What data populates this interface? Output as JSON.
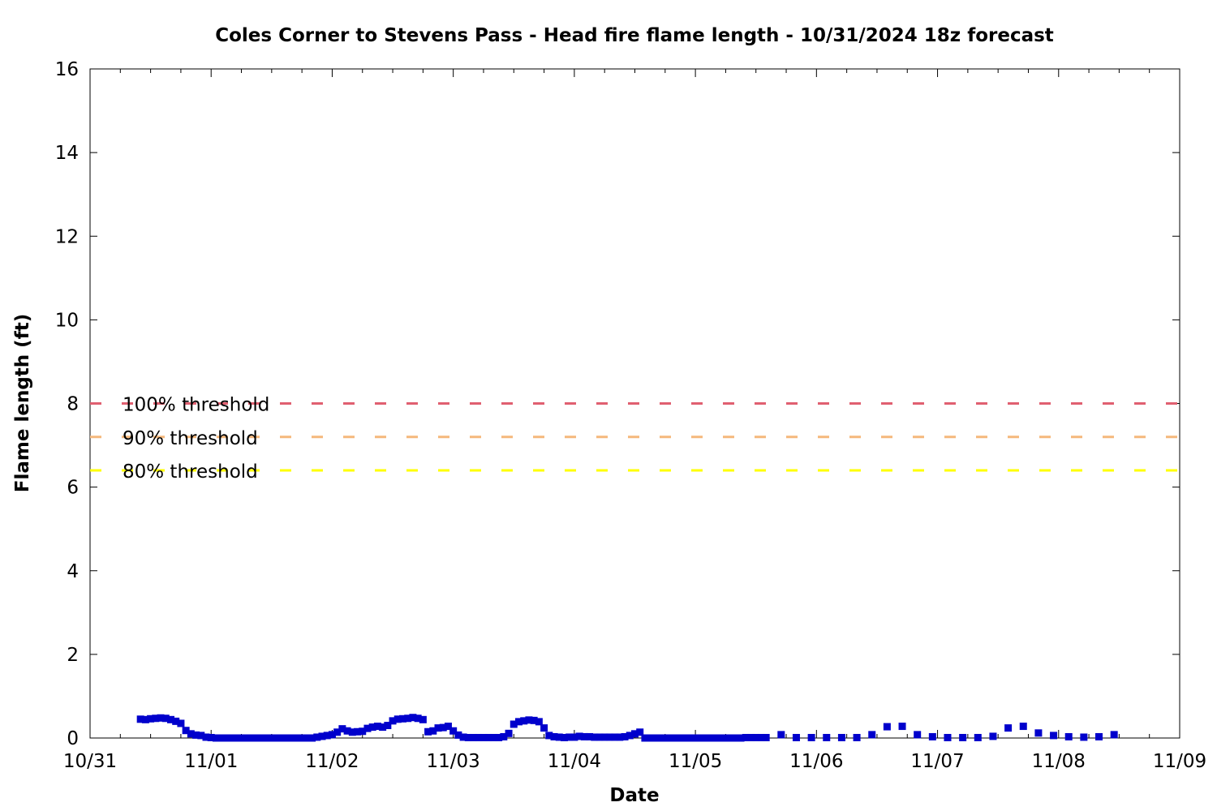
{
  "chart_data": {
    "type": "scatter",
    "title": "Coles Corner to Stevens Pass - Head fire flame length - 10/31/2024 18z forecast",
    "xlabel": "Date",
    "ylabel": "Flame length (ft)",
    "xlim": [
      "2024-10-31 00:00",
      "2024-11-09 00:00"
    ],
    "ylim": [
      0,
      16
    ],
    "x_tick_labels": [
      "10/31",
      "11/01",
      "11/02",
      "11/03",
      "11/04",
      "11/05",
      "11/06",
      "11/07",
      "11/08",
      "11/09"
    ],
    "y_ticks": [
      0,
      2,
      4,
      6,
      8,
      10,
      12,
      14,
      16
    ],
    "grid": false,
    "legend_position": "left",
    "thresholds": [
      {
        "name": "100% threshold",
        "value": 8.0,
        "color": "#e06070"
      },
      {
        "name": "90% threshold",
        "value": 7.2,
        "color": "#f5b87c"
      },
      {
        "name": "80% threshold",
        "value": 6.4,
        "color": "#ffff00"
      }
    ],
    "series": [
      {
        "color": "#0000cc",
        "marker": "square",
        "points": [
          [
            "2024-10-31 10:00",
            0.45
          ],
          [
            "2024-10-31 11:00",
            0.44
          ],
          [
            "2024-10-31 12:00",
            0.46
          ],
          [
            "2024-10-31 13:00",
            0.47
          ],
          [
            "2024-10-31 14:00",
            0.48
          ],
          [
            "2024-10-31 15:00",
            0.47
          ],
          [
            "2024-10-31 16:00",
            0.44
          ],
          [
            "2024-10-31 17:00",
            0.4
          ],
          [
            "2024-10-31 18:00",
            0.35
          ],
          [
            "2024-10-31 19:00",
            0.18
          ],
          [
            "2024-10-31 20:00",
            0.1
          ],
          [
            "2024-10-31 21:00",
            0.07
          ],
          [
            "2024-10-31 22:00",
            0.06
          ],
          [
            "2024-10-31 23:00",
            0.02
          ],
          [
            "2024-11-01 00:00",
            0.01
          ],
          [
            "2024-11-01 01:00",
            0.0
          ],
          [
            "2024-11-01 02:00",
            0.0
          ],
          [
            "2024-11-01 03:00",
            0.0
          ],
          [
            "2024-11-01 04:00",
            0.0
          ],
          [
            "2024-11-01 05:00",
            0.0
          ],
          [
            "2024-11-01 06:00",
            0.0
          ],
          [
            "2024-11-01 07:00",
            0.0
          ],
          [
            "2024-11-01 08:00",
            0.0
          ],
          [
            "2024-11-01 09:00",
            0.0
          ],
          [
            "2024-11-01 10:00",
            0.0
          ],
          [
            "2024-11-01 11:00",
            0.0
          ],
          [
            "2024-11-01 12:00",
            0.0
          ],
          [
            "2024-11-01 13:00",
            0.0
          ],
          [
            "2024-11-01 14:00",
            0.0
          ],
          [
            "2024-11-01 15:00",
            0.0
          ],
          [
            "2024-11-01 16:00",
            0.0
          ],
          [
            "2024-11-01 17:00",
            0.0
          ],
          [
            "2024-11-01 18:00",
            0.0
          ],
          [
            "2024-11-01 19:00",
            0.0
          ],
          [
            "2024-11-01 20:00",
            0.0
          ],
          [
            "2024-11-01 21:00",
            0.02
          ],
          [
            "2024-11-01 22:00",
            0.04
          ],
          [
            "2024-11-01 23:00",
            0.06
          ],
          [
            "2024-11-02 00:00",
            0.08
          ],
          [
            "2024-11-02 01:00",
            0.14
          ],
          [
            "2024-11-02 02:00",
            0.22
          ],
          [
            "2024-11-02 03:00",
            0.17
          ],
          [
            "2024-11-02 04:00",
            0.14
          ],
          [
            "2024-11-02 05:00",
            0.15
          ],
          [
            "2024-11-02 06:00",
            0.16
          ],
          [
            "2024-11-02 07:00",
            0.23
          ],
          [
            "2024-11-02 08:00",
            0.26
          ],
          [
            "2024-11-02 09:00",
            0.28
          ],
          [
            "2024-11-02 10:00",
            0.26
          ],
          [
            "2024-11-02 11:00",
            0.3
          ],
          [
            "2024-11-02 12:00",
            0.41
          ],
          [
            "2024-11-02 13:00",
            0.45
          ],
          [
            "2024-11-02 14:00",
            0.46
          ],
          [
            "2024-11-02 15:00",
            0.47
          ],
          [
            "2024-11-02 16:00",
            0.49
          ],
          [
            "2024-11-02 17:00",
            0.47
          ],
          [
            "2024-11-02 18:00",
            0.44
          ],
          [
            "2024-11-02 19:00",
            0.15
          ],
          [
            "2024-11-02 20:00",
            0.17
          ],
          [
            "2024-11-02 21:00",
            0.24
          ],
          [
            "2024-11-02 22:00",
            0.25
          ],
          [
            "2024-11-02 23:00",
            0.28
          ],
          [
            "2024-11-03 00:00",
            0.17
          ],
          [
            "2024-11-03 01:00",
            0.07
          ],
          [
            "2024-11-03 02:00",
            0.02
          ],
          [
            "2024-11-03 03:00",
            0.01
          ],
          [
            "2024-11-03 04:00",
            0.01
          ],
          [
            "2024-11-03 05:00",
            0.01
          ],
          [
            "2024-11-03 06:00",
            0.01
          ],
          [
            "2024-11-03 07:00",
            0.01
          ],
          [
            "2024-11-03 08:00",
            0.01
          ],
          [
            "2024-11-03 09:00",
            0.01
          ],
          [
            "2024-11-03 10:00",
            0.03
          ],
          [
            "2024-11-03 11:00",
            0.11
          ],
          [
            "2024-11-03 12:00",
            0.33
          ],
          [
            "2024-11-03 13:00",
            0.39
          ],
          [
            "2024-11-03 14:00",
            0.41
          ],
          [
            "2024-11-03 15:00",
            0.43
          ],
          [
            "2024-11-03 16:00",
            0.42
          ],
          [
            "2024-11-03 17:00",
            0.39
          ],
          [
            "2024-11-03 18:00",
            0.24
          ],
          [
            "2024-11-03 19:00",
            0.06
          ],
          [
            "2024-11-03 20:00",
            0.03
          ],
          [
            "2024-11-03 21:00",
            0.02
          ],
          [
            "2024-11-03 22:00",
            0.01
          ],
          [
            "2024-11-03 23:00",
            0.02
          ],
          [
            "2024-11-04 00:00",
            0.02
          ],
          [
            "2024-11-04 01:00",
            0.04
          ],
          [
            "2024-11-04 02:00",
            0.03
          ],
          [
            "2024-11-04 03:00",
            0.03
          ],
          [
            "2024-11-04 04:00",
            0.02
          ],
          [
            "2024-11-04 05:00",
            0.02
          ],
          [
            "2024-11-04 06:00",
            0.02
          ],
          [
            "2024-11-04 07:00",
            0.02
          ],
          [
            "2024-11-04 08:00",
            0.02
          ],
          [
            "2024-11-04 09:00",
            0.02
          ],
          [
            "2024-11-04 10:00",
            0.03
          ],
          [
            "2024-11-04 11:00",
            0.06
          ],
          [
            "2024-11-04 12:00",
            0.1
          ],
          [
            "2024-11-04 13:00",
            0.14
          ],
          [
            "2024-11-04 14:00",
            0.0
          ],
          [
            "2024-11-04 15:00",
            0.0
          ],
          [
            "2024-11-04 16:00",
            0.0
          ],
          [
            "2024-11-04 17:00",
            0.0
          ],
          [
            "2024-11-04 18:00",
            0.0
          ],
          [
            "2024-11-04 19:00",
            0.0
          ],
          [
            "2024-11-04 20:00",
            0.0
          ],
          [
            "2024-11-04 21:00",
            0.0
          ],
          [
            "2024-11-04 22:00",
            0.0
          ],
          [
            "2024-11-04 23:00",
            0.0
          ],
          [
            "2024-11-05 00:00",
            0.0
          ],
          [
            "2024-11-05 01:00",
            0.0
          ],
          [
            "2024-11-05 02:00",
            0.0
          ],
          [
            "2024-11-05 03:00",
            0.0
          ],
          [
            "2024-11-05 04:00",
            0.0
          ],
          [
            "2024-11-05 05:00",
            0.0
          ],
          [
            "2024-11-05 06:00",
            0.0
          ],
          [
            "2024-11-05 07:00",
            0.0
          ],
          [
            "2024-11-05 08:00",
            0.0
          ],
          [
            "2024-11-05 09:00",
            0.0
          ],
          [
            "2024-11-05 10:00",
            0.01
          ],
          [
            "2024-11-05 11:00",
            0.01
          ],
          [
            "2024-11-05 12:00",
            0.01
          ],
          [
            "2024-11-05 13:00",
            0.01
          ],
          [
            "2024-11-05 14:00",
            0.01
          ],
          [
            "2024-11-05 17:00",
            0.08
          ],
          [
            "2024-11-05 20:00",
            0.01
          ],
          [
            "2024-11-05 23:00",
            0.01
          ],
          [
            "2024-11-06 02:00",
            0.01
          ],
          [
            "2024-11-06 05:00",
            0.01
          ],
          [
            "2024-11-06 08:00",
            0.01
          ],
          [
            "2024-11-06 11:00",
            0.08
          ],
          [
            "2024-11-06 14:00",
            0.27
          ],
          [
            "2024-11-06 17:00",
            0.28
          ],
          [
            "2024-11-06 20:00",
            0.08
          ],
          [
            "2024-11-06 23:00",
            0.03
          ],
          [
            "2024-11-07 02:00",
            0.01
          ],
          [
            "2024-11-07 05:00",
            0.01
          ],
          [
            "2024-11-07 08:00",
            0.01
          ],
          [
            "2024-11-07 11:00",
            0.04
          ],
          [
            "2024-11-07 14:00",
            0.24
          ],
          [
            "2024-11-07 17:00",
            0.28
          ],
          [
            "2024-11-07 20:00",
            0.12
          ],
          [
            "2024-11-07 23:00",
            0.06
          ],
          [
            "2024-11-08 02:00",
            0.03
          ],
          [
            "2024-11-08 05:00",
            0.02
          ],
          [
            "2024-11-08 08:00",
            0.03
          ],
          [
            "2024-11-08 11:00",
            0.08
          ]
        ]
      }
    ]
  }
}
